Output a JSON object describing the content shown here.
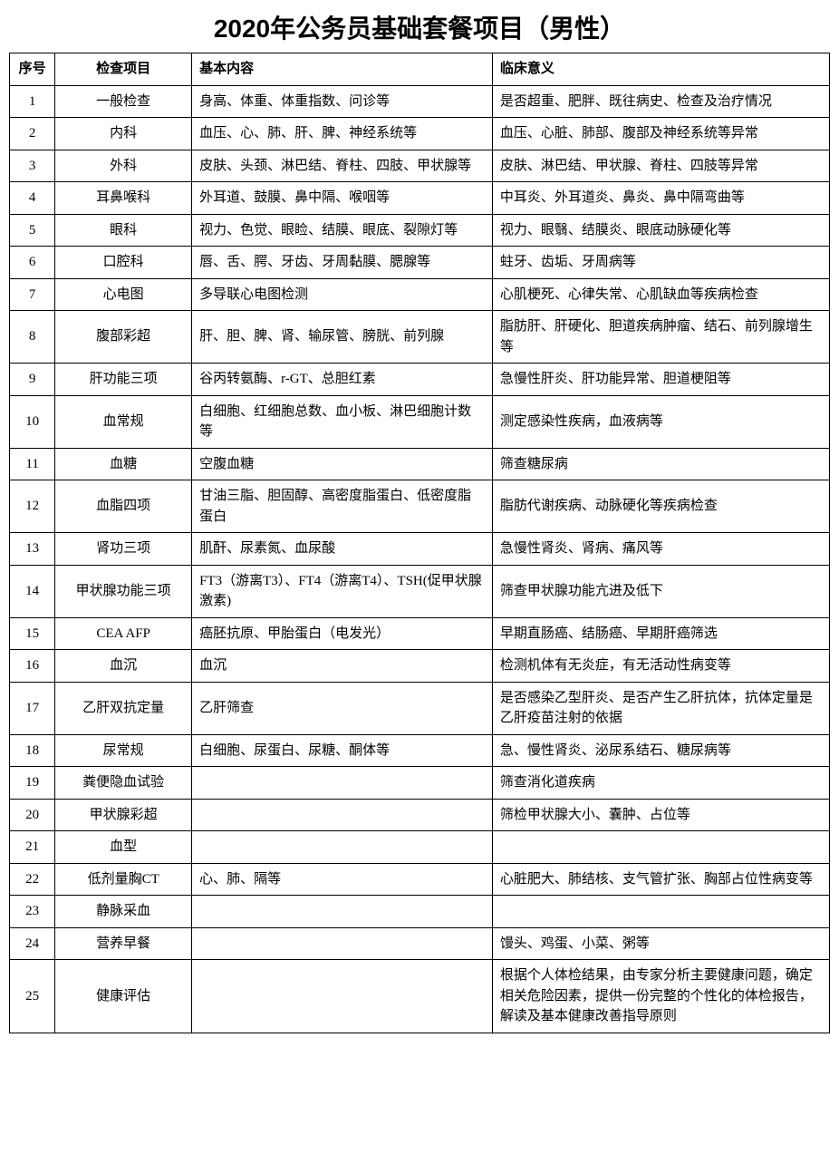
{
  "title": "2020年公务员基础套餐项目（男性）",
  "headers": {
    "seq": "序号",
    "item": "检查项目",
    "content": "基本内容",
    "meaning": "临床意义"
  },
  "rows": [
    {
      "seq": "1",
      "item": "一般检查",
      "content": "身高、体重、体重指数、问诊等",
      "meaning": "是否超重、肥胖、既往病史、检查及治疗情况"
    },
    {
      "seq": "2",
      "item": "内科",
      "content": "血压、心、肺、肝、脾、神经系统等",
      "meaning": "血压、心脏、肺部、腹部及神经系统等异常"
    },
    {
      "seq": "3",
      "item": "外科",
      "content": "皮肤、头颈、淋巴结、脊柱、四肢、甲状腺等",
      "meaning": "皮肤、淋巴结、甲状腺、脊柱、四肢等异常"
    },
    {
      "seq": "4",
      "item": "耳鼻喉科",
      "content": "外耳道、鼓膜、鼻中隔、喉咽等",
      "meaning": "中耳炎、外耳道炎、鼻炎、鼻中隔弯曲等"
    },
    {
      "seq": "5",
      "item": "眼科",
      "content": "视力、色觉、眼睑、结膜、眼底、裂隙灯等",
      "meaning": "视力、眼翳、结膜炎、眼底动脉硬化等"
    },
    {
      "seq": "6",
      "item": "口腔科",
      "content": "唇、舌、腭、牙齿、牙周黏膜、腮腺等",
      "meaning": "蛀牙、齿垢、牙周病等"
    },
    {
      "seq": "7",
      "item": "心电图",
      "content": "多导联心电图检测",
      "meaning": "心肌梗死、心律失常、心肌缺血等疾病检查"
    },
    {
      "seq": "8",
      "item": "腹部彩超",
      "content": "肝、胆、脾、肾、输尿管、膀胱、前列腺",
      "meaning": "脂肪肝、肝硬化、胆道疾病肿瘤、结石、前列腺增生等"
    },
    {
      "seq": "9",
      "item": "肝功能三项",
      "content": "谷丙转氨酶、r-GT、总胆红素",
      "meaning": "急慢性肝炎、肝功能异常、胆道梗阻等"
    },
    {
      "seq": "10",
      "item": "血常规",
      "content": "白细胞、红细胞总数、血小板、淋巴细胞计数等",
      "meaning": "测定感染性疾病，血液病等"
    },
    {
      "seq": "11",
      "item": "血糖",
      "content": "空腹血糖",
      "meaning": "筛查糖尿病"
    },
    {
      "seq": "12",
      "item": "血脂四项",
      "content": "甘油三脂、胆固醇、高密度脂蛋白、低密度脂蛋白",
      "meaning": "脂肪代谢疾病、动脉硬化等疾病检查"
    },
    {
      "seq": "13",
      "item": "肾功三项",
      "content": "肌酐、尿素氮、血尿酸",
      "meaning": "急慢性肾炎、肾病、痛风等"
    },
    {
      "seq": "14",
      "item": "甲状腺功能三项",
      "content": "FT3（游离T3）、FT4（游离T4）、TSH(促甲状腺激素)",
      "meaning": "筛查甲状腺功能亢进及低下"
    },
    {
      "seq": "15",
      "item": "CEA AFP",
      "content": "癌胚抗原、甲胎蛋白（电发光）",
      "meaning": "早期直肠癌、结肠癌、早期肝癌筛选"
    },
    {
      "seq": "16",
      "item": "血沉",
      "content": "血沉",
      "meaning": "检测机体有无炎症，有无活动性病变等"
    },
    {
      "seq": "17",
      "item": "乙肝双抗定量",
      "content": "乙肝筛查",
      "meaning": "是否感染乙型肝炎、是否产生乙肝抗体，抗体定量是乙肝疫苗注射的依据"
    },
    {
      "seq": "18",
      "item": "尿常规",
      "content": "白细胞、尿蛋白、尿糖、酮体等",
      "meaning": "急、慢性肾炎、泌尿系结石、糖尿病等"
    },
    {
      "seq": "19",
      "item": "粪便隐血试验",
      "content": "",
      "meaning": "筛查消化道疾病"
    },
    {
      "seq": "20",
      "item": "甲状腺彩超",
      "content": "",
      "meaning": "筛检甲状腺大小、囊肿、占位等"
    },
    {
      "seq": "21",
      "item": "血型",
      "content": "",
      "meaning": ""
    },
    {
      "seq": "22",
      "item": "低剂量胸CT",
      "content": "心、肺、隔等",
      "meaning": "心脏肥大、肺结核、支气管扩张、胸部占位性病变等"
    },
    {
      "seq": "23",
      "item": "静脉采血",
      "content": "",
      "meaning": ""
    },
    {
      "seq": "24",
      "item": "营养早餐",
      "content": "",
      "meaning": "馒头、鸡蛋、小菜、粥等"
    },
    {
      "seq": "25",
      "item": "健康评估",
      "content": "",
      "meaning": "根据个人体检结果，由专家分析主要健康问题，确定相关危险因素，提供一份完整的个性化的体检报告，解读及基本健康改善指导原则"
    }
  ]
}
